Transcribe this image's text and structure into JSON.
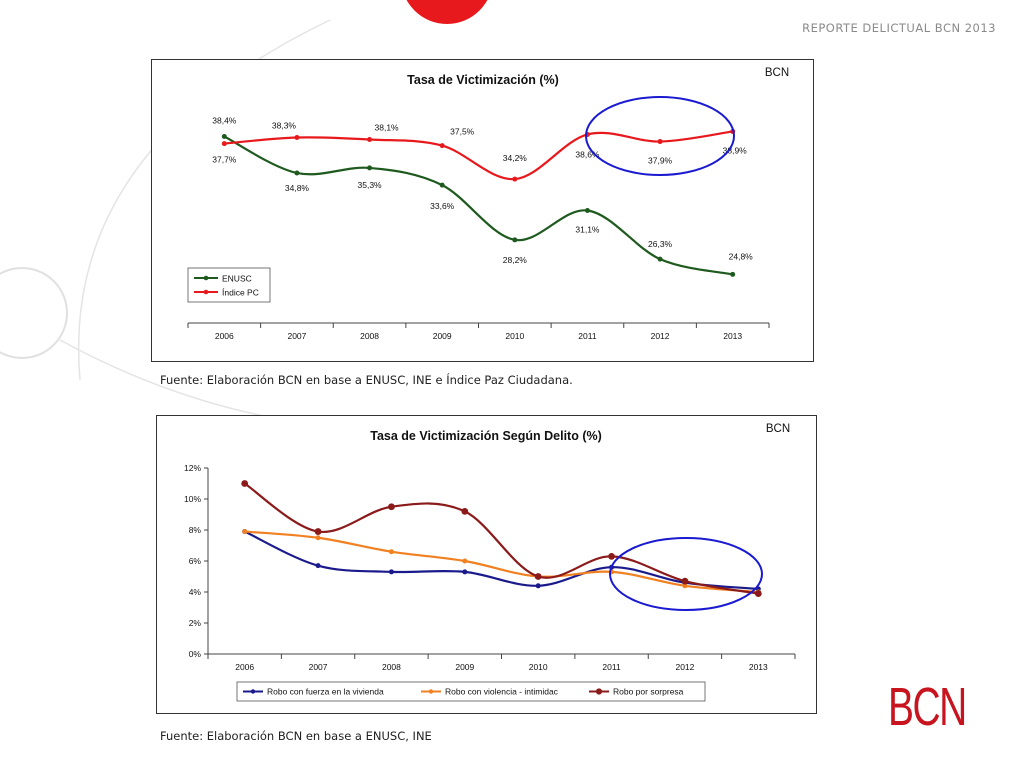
{
  "header": {
    "title": "REPORTE DELICTUAL BCN 2013"
  },
  "colors": {
    "brand_red": "#c8141e",
    "enusc": "#1e5a1e",
    "indice": "#e8191c",
    "robo_fuerza": "#1a1a8c",
    "robo_violencia": "#f08020",
    "robo_sorpresa": "#8b1a1a",
    "highlight": "#1a1ad0"
  },
  "chart_data": [
    {
      "type": "line",
      "title": "Tasa de Victimización (%)",
      "brand": "BCN",
      "categories": [
        "2006",
        "2007",
        "2008",
        "2009",
        "2010",
        "2011",
        "2012",
        "2013"
      ],
      "ylim": [
        20,
        42
      ],
      "series": [
        {
          "name": "ENUSC",
          "values": [
            38.4,
            34.8,
            35.3,
            33.6,
            28.2,
            31.1,
            26.3,
            24.8
          ],
          "labels": [
            "38,4%",
            "34,8%",
            "35,3%",
            "33,6%",
            "28,2%",
            "31,1%",
            "26,3%",
            "24,8%"
          ]
        },
        {
          "name": "Índice PC",
          "values": [
            37.7,
            38.3,
            38.1,
            37.5,
            34.2,
            38.6,
            37.9,
            38.9
          ],
          "labels": [
            "37,7%",
            "38,3%",
            "38,1%",
            "37,5%",
            "34,2%",
            "38,6%",
            "37,9%",
            "38,9%"
          ]
        }
      ],
      "legend": "bottom-left"
    },
    {
      "type": "line",
      "title": "Tasa de Victimización Según Delito (%)",
      "brand": "BCN",
      "categories": [
        "2006",
        "2007",
        "2008",
        "2009",
        "2010",
        "2011",
        "2012",
        "2013"
      ],
      "ylim": [
        0,
        12
      ],
      "yticks": [
        "0%",
        "2%",
        "4%",
        "6%",
        "8%",
        "10%",
        "12%"
      ],
      "series": [
        {
          "name": "Robo con fuerza en la vivienda",
          "values": [
            7.9,
            5.7,
            5.3,
            5.3,
            4.4,
            5.6,
            4.6,
            4.2
          ]
        },
        {
          "name": "Robo con violencia - intimidac",
          "values": [
            7.9,
            7.5,
            6.6,
            6.0,
            5.0,
            5.3,
            4.4,
            4.0
          ]
        },
        {
          "name": "Robo por sorpresa",
          "values": [
            11.0,
            7.9,
            9.5,
            9.2,
            5.0,
            6.3,
            4.7,
            3.9
          ]
        }
      ],
      "legend": "bottom"
    }
  ],
  "sources": [
    "Fuente: Elaboración BCN en base a ENUSC, INE e Índice Paz Ciudadana.",
    "Fuente: Elaboración BCN en base a ENUSC, INE"
  ],
  "logo": "BCN"
}
